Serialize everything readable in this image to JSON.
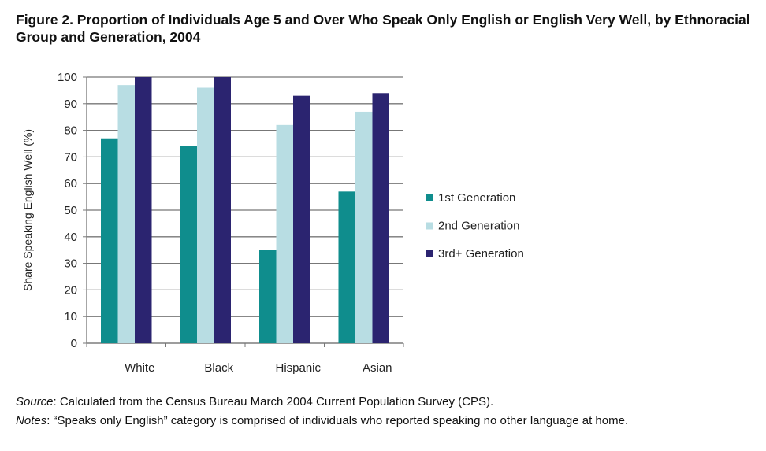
{
  "title": "Figure 2. Proportion of Individuals Age 5 and Over Who Speak Only English or English Very Well, by Ethnoracial Group and Generation, 2004",
  "chart_data": {
    "type": "bar",
    "categories": [
      "White",
      "Black",
      "Hispanic",
      "Asian"
    ],
    "series": [
      {
        "name": "1st Generation",
        "color": "#0f8d8d",
        "values": [
          77,
          74,
          35,
          57
        ]
      },
      {
        "name": "2nd Generation",
        "color": "#b8dde3",
        "values": [
          97,
          96,
          82,
          87
        ]
      },
      {
        "name": "3rd+ Generation",
        "color": "#2b2470",
        "values": [
          100,
          100,
          93,
          94
        ]
      }
    ],
    "ylabel": "Share Speaking English Well (%)",
    "xlabel": "",
    "ylim": [
      0,
      100
    ],
    "yticks": [
      0,
      10,
      20,
      30,
      40,
      50,
      60,
      70,
      80,
      90,
      100
    ],
    "grid": true,
    "legend": "right"
  },
  "footer": {
    "source_label": "Source",
    "source_text": ": Calculated from the Census Bureau March 2004 Current Population Survey (CPS).",
    "notes_label": "Notes",
    "notes_text": ": “Speaks only English” category is comprised of individuals who reported speaking no other language at home."
  }
}
